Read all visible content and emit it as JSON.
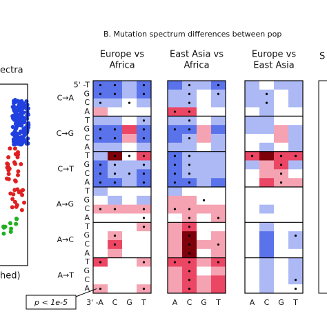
{
  "left_panel": {
    "title_fragment": "ectra",
    "label_fragment": "hed)"
  },
  "panel_b": {
    "title": "B. Mutation spectrum differences between pop",
    "cut_off_title": "S",
    "mutation_types": [
      "C→A",
      "C→G",
      "C→T",
      "A→G",
      "A→C",
      "A→T"
    ],
    "five_prime_label": "5' -T",
    "five_prime_bases": [
      "T",
      "G",
      "C",
      "A"
    ],
    "three_prime_label": "3' -A",
    "three_prime_bases": [
      "A",
      "C",
      "G",
      "T"
    ],
    "p_annotation": "p < 1e-5",
    "heatmaps": [
      {
        "title_lines": [
          "Europe vs",
          "Africa"
        ],
        "values": [
          [
            -2,
            -2,
            -1,
            -2
          ],
          [
            -2,
            -2,
            -1,
            -2
          ],
          [
            -1,
            -1,
            0,
            -1
          ],
          [
            1,
            0,
            0,
            0
          ],
          [
            -1,
            -1,
            0,
            -1
          ],
          [
            -2,
            -2,
            2,
            -2
          ],
          [
            -2,
            -2,
            1,
            -2
          ],
          [
            -1,
            -1,
            0,
            -1
          ],
          [
            -1,
            3,
            0,
            2
          ],
          [
            -2,
            -1,
            -1,
            -1
          ],
          [
            -2,
            -1,
            -1,
            -2
          ],
          [
            -2,
            -2,
            -1,
            -2
          ],
          [
            -1,
            0,
            0,
            0
          ],
          [
            0,
            -1,
            0,
            -1
          ],
          [
            1,
            1,
            1,
            1
          ],
          [
            0,
            0,
            0,
            0
          ],
          [
            0,
            0,
            0,
            1
          ],
          [
            0,
            1,
            0,
            0
          ],
          [
            0,
            2,
            0,
            0
          ],
          [
            0,
            1,
            0,
            0
          ],
          [
            2,
            0,
            0,
            1
          ],
          [
            0,
            0,
            0,
            0
          ],
          [
            0,
            0,
            0,
            0
          ],
          [
            1,
            0,
            0,
            1
          ]
        ],
        "significant": [
          [
            0,
            1,
            3
          ],
          [
            0,
            1,
            3
          ],
          [
            0,
            2
          ],
          [],
          [
            3
          ],
          [
            0,
            1,
            3
          ],
          [
            0,
            1,
            3
          ],
          [],
          [
            1,
            2,
            3
          ],
          [
            0,
            1,
            3
          ],
          [
            0,
            1,
            2,
            3
          ],
          [
            0,
            1,
            3
          ],
          [],
          [],
          [
            0,
            1,
            3
          ],
          [
            3
          ],
          [
            3
          ],
          [
            1
          ],
          [
            1
          ],
          [],
          [
            0,
            3
          ],
          [],
          [],
          [
            0,
            3
          ]
        ]
      },
      {
        "title_lines": [
          "East Asia vs",
          "Africa"
        ],
        "values": [
          [
            -2,
            -1,
            -1,
            -2
          ],
          [
            -1,
            -1,
            0,
            -1
          ],
          [
            -1,
            -1,
            0,
            -1
          ],
          [
            2,
            2,
            0,
            0
          ],
          [
            -1,
            -1,
            0,
            -1
          ],
          [
            -2,
            -2,
            1,
            -2
          ],
          [
            -2,
            -1,
            1,
            -1
          ],
          [
            -1,
            -1,
            0,
            -1
          ],
          [
            -2,
            -1,
            -1,
            -1
          ],
          [
            -2,
            -1,
            -1,
            -1
          ],
          [
            -2,
            -1,
            -1,
            -1
          ],
          [
            -2,
            -2,
            -1,
            -2
          ],
          [
            -1,
            0,
            0,
            0
          ],
          [
            1,
            1,
            0,
            0
          ],
          [
            1,
            1,
            1,
            1
          ],
          [
            0,
            1,
            0,
            1
          ],
          [
            1,
            2,
            0,
            0
          ],
          [
            1,
            3,
            0,
            1
          ],
          [
            1,
            3,
            1,
            1
          ],
          [
            1,
            3,
            0,
            1
          ],
          [
            2,
            2,
            1,
            2
          ],
          [
            1,
            2,
            0,
            1
          ],
          [
            1,
            2,
            1,
            2
          ],
          [
            1,
            2,
            1,
            2
          ]
        ],
        "significant": [
          [
            1,
            3
          ],
          [
            1,
            3
          ],
          [
            1
          ],
          [
            0,
            1
          ],
          [
            1
          ],
          [
            0,
            1
          ],
          [
            1
          ],
          [],
          [
            0,
            1
          ],
          [
            0,
            1
          ],
          [
            0,
            1
          ],
          [
            0,
            1
          ],
          [],
          [
            2
          ],
          [
            0,
            1
          ],
          [
            1,
            3
          ],
          [
            1
          ],
          [
            1
          ],
          [
            1,
            3
          ],
          [
            1
          ],
          [
            0,
            1,
            3
          ],
          [
            1
          ],
          [
            1
          ],
          [
            1
          ]
        ]
      },
      {
        "title_lines": [
          "Europe vs",
          "East Asia"
        ],
        "values": [
          [
            -1,
            0,
            -1,
            -1
          ],
          [
            -1,
            -1,
            0,
            -1
          ],
          [
            -1,
            -1,
            0,
            -1
          ],
          [
            0,
            -1,
            0,
            0
          ],
          [
            -1,
            -1,
            0,
            0
          ],
          [
            -1,
            -1,
            1,
            -1
          ],
          [
            0,
            0,
            1,
            -1
          ],
          [
            0,
            -1,
            0,
            -1
          ],
          [
            2,
            3,
            2,
            2
          ],
          [
            -1,
            1,
            2,
            -1
          ],
          [
            0,
            1,
            1,
            0
          ],
          [
            0,
            2,
            1,
            1
          ],
          [
            0,
            0,
            0,
            0
          ],
          [
            0,
            0,
            0,
            0
          ],
          [
            0,
            -1,
            0,
            0
          ],
          [
            0,
            0,
            0,
            0
          ],
          [
            0,
            -1,
            0,
            0
          ],
          [
            0,
            -2,
            0,
            -1
          ],
          [
            0,
            -2,
            0,
            -1
          ],
          [
            0,
            -2,
            0,
            0
          ],
          [
            0,
            -1,
            0,
            -1
          ],
          [
            0,
            -1,
            0,
            -1
          ],
          [
            0,
            -1,
            0,
            -1
          ],
          [
            0,
            -1,
            0,
            0
          ]
        ],
        "significant": [
          [],
          [
            1
          ],
          [
            1
          ],
          [],
          [],
          [],
          [],
          [],
          [
            0,
            2,
            3
          ],
          [
            2
          ],
          [
            2
          ],
          [
            2
          ],
          [],
          [],
          [],
          [],
          [],
          [
            3
          ],
          [],
          [],
          [],
          [],
          [
            3
          ],
          [
            3
          ]
        ]
      }
    ]
  }
}
